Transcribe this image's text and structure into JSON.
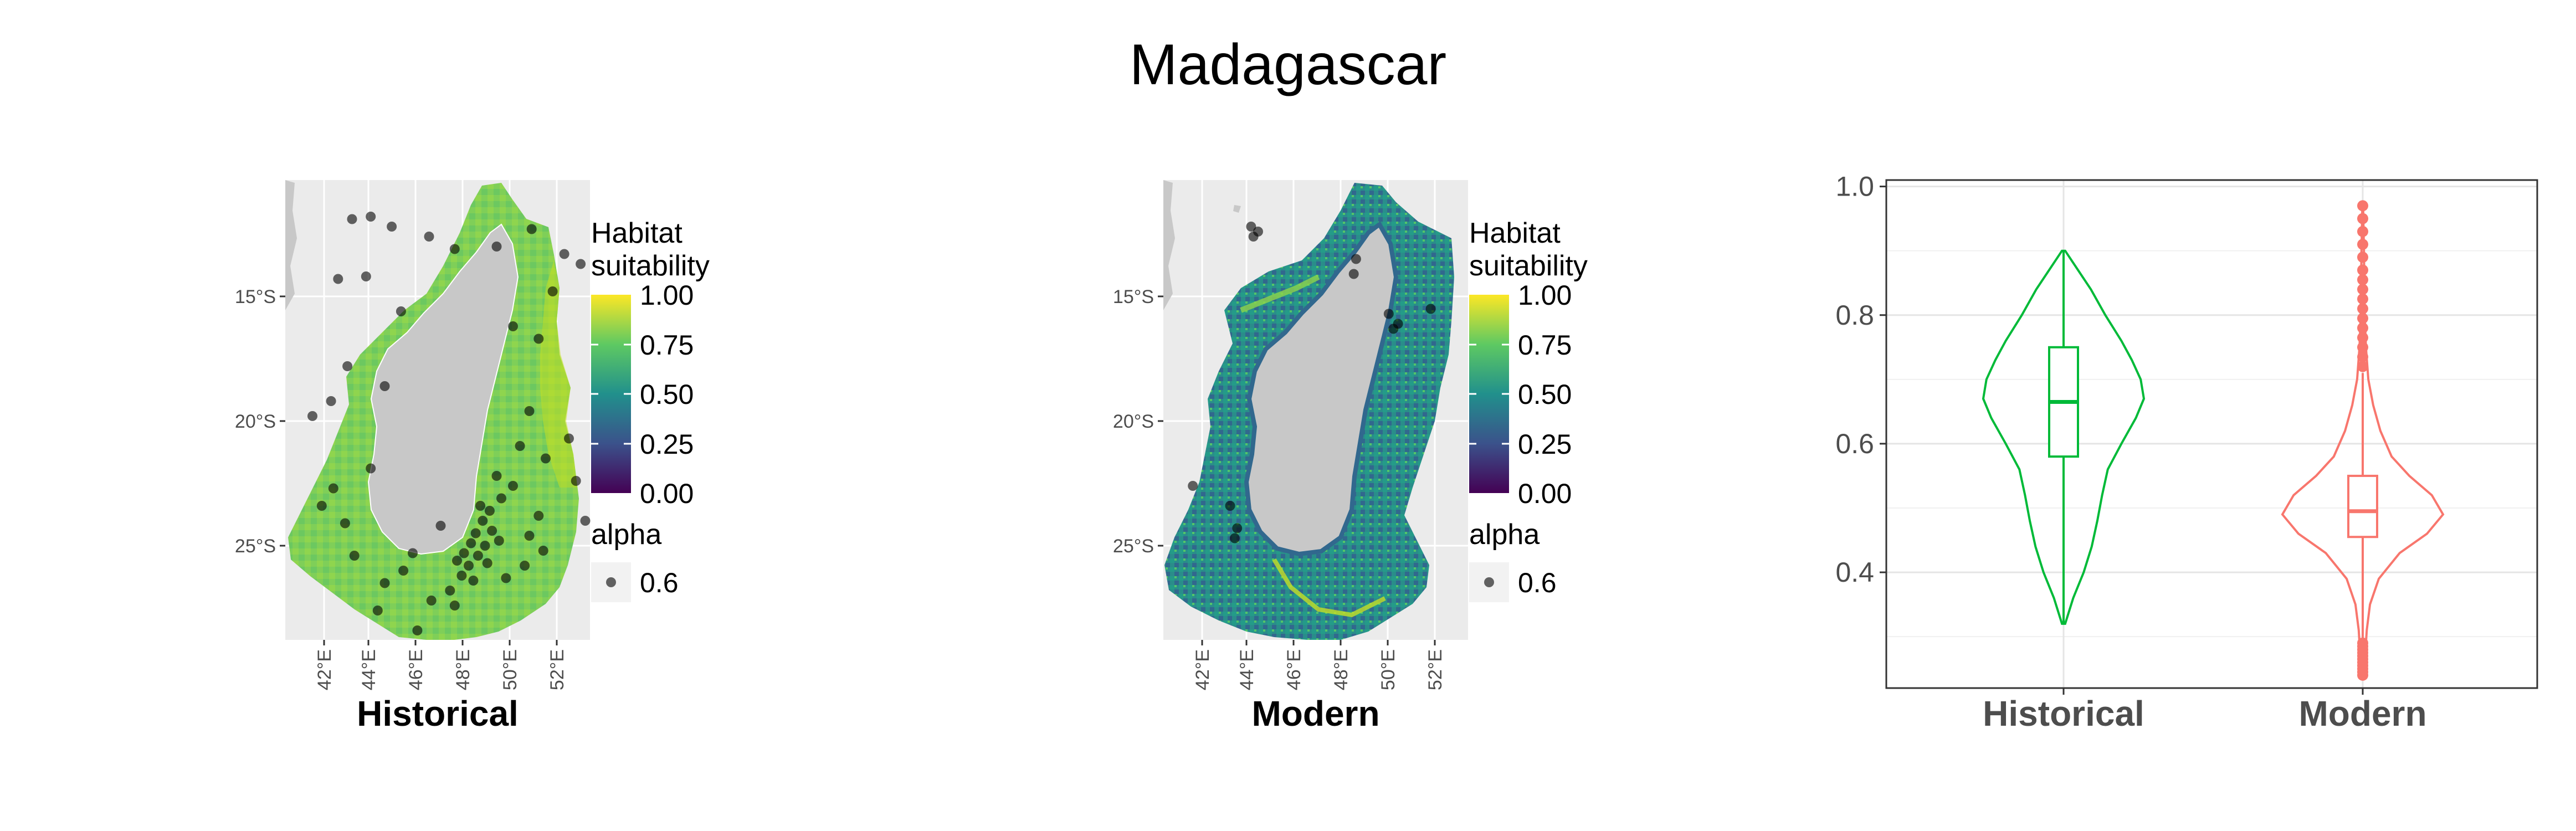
{
  "figure": {
    "title": "Madagascar"
  },
  "chart_data": [
    {
      "type": "heatmap",
      "panel": "historical-map",
      "xlabel": "Historical",
      "x_ticks": [
        "42°E",
        "44°E",
        "46°E",
        "48°E",
        "50°E",
        "52°E"
      ],
      "x_tick_values": [
        42,
        44,
        46,
        48,
        50,
        52
      ],
      "y_ticks": [
        "15°S",
        "20°S",
        "25°S"
      ],
      "y_tick_values": [
        -15,
        -20,
        -25
      ],
      "xlim": [
        41.2,
        53.6
      ],
      "ylim": [
        -29.3,
        -11.7
      ],
      "legend_title_line1": "Habitat",
      "legend_title_line2": "suitability",
      "legend_ticks": [
        "1.00",
        "0.75",
        "0.50",
        "0.25",
        "0.00"
      ],
      "legend_values": [
        1.0,
        0.75,
        0.5,
        0.25,
        0.0
      ],
      "alpha_title": "alpha",
      "alpha_value": "0.6",
      "occurrences": [
        [
          43.2,
          -11.9
        ],
        [
          44.0,
          -11.8
        ],
        [
          44.9,
          -12.2
        ],
        [
          46.5,
          -12.6
        ],
        [
          47.6,
          -13.1
        ],
        [
          49.4,
          -13.0
        ],
        [
          50.9,
          -12.3
        ],
        [
          52.3,
          -13.3
        ],
        [
          53.0,
          -13.7
        ],
        [
          43.8,
          -14.2
        ],
        [
          42.6,
          -14.3
        ],
        [
          51.8,
          -14.8
        ],
        [
          45.3,
          -15.6
        ],
        [
          50.1,
          -16.2
        ],
        [
          51.2,
          -16.7
        ],
        [
          43.0,
          -17.8
        ],
        [
          44.6,
          -18.6
        ],
        [
          42.3,
          -19.2
        ],
        [
          41.5,
          -19.8
        ],
        [
          50.8,
          -19.6
        ],
        [
          52.5,
          -20.7
        ],
        [
          51.5,
          -21.5
        ],
        [
          50.4,
          -21.0
        ],
        [
          44.0,
          -21.9
        ],
        [
          42.4,
          -22.7
        ],
        [
          50.1,
          -22.6
        ],
        [
          49.4,
          -22.2
        ],
        [
          52.8,
          -22.4
        ],
        [
          53.2,
          -24.0
        ],
        [
          51.2,
          -23.8
        ],
        [
          50.8,
          -24.6
        ],
        [
          49.6,
          -23.1
        ],
        [
          49.1,
          -23.6
        ],
        [
          48.8,
          -24.0
        ],
        [
          48.5,
          -24.5
        ],
        [
          48.3,
          -24.9
        ],
        [
          48.0,
          -25.3
        ],
        [
          47.7,
          -25.6
        ],
        [
          48.9,
          -25.0
        ],
        [
          49.2,
          -24.4
        ],
        [
          48.6,
          -25.4
        ],
        [
          48.2,
          -25.8
        ],
        [
          47.9,
          -26.2
        ],
        [
          48.4,
          -26.4
        ],
        [
          49.0,
          -25.7
        ],
        [
          49.5,
          -24.8
        ],
        [
          48.7,
          -23.4
        ],
        [
          47.4,
          -26.8
        ],
        [
          46.6,
          -27.2
        ],
        [
          45.4,
          -26.0
        ],
        [
          44.6,
          -26.5
        ],
        [
          43.3,
          -25.4
        ],
        [
          42.9,
          -24.1
        ],
        [
          41.9,
          -23.4
        ],
        [
          44.3,
          -27.6
        ],
        [
          46.0,
          -28.4
        ],
        [
          47.6,
          -27.4
        ],
        [
          50.6,
          -25.8
        ],
        [
          51.4,
          -25.2
        ],
        [
          49.8,
          -26.3
        ],
        [
          45.8,
          -25.3
        ],
        [
          47.0,
          -24.2
        ]
      ]
    },
    {
      "type": "heatmap",
      "panel": "modern-map",
      "xlabel": "Modern",
      "x_ticks": [
        "42°E",
        "44°E",
        "46°E",
        "48°E",
        "50°E",
        "52°E"
      ],
      "x_tick_values": [
        42,
        44,
        46,
        48,
        50,
        52
      ],
      "y_ticks": [
        "15°S",
        "20°S",
        "25°S"
      ],
      "y_tick_values": [
        -15,
        -20,
        -25
      ],
      "xlim": [
        41.2,
        53.6
      ],
      "ylim": [
        -29.3,
        -11.7
      ],
      "legend_title_line1": "Habitat",
      "legend_title_line2": "suitability",
      "legend_ticks": [
        "1.00",
        "0.75",
        "0.50",
        "0.25",
        "0.00"
      ],
      "legend_values": [
        1.0,
        0.75,
        0.5,
        0.25,
        0.0
      ],
      "alpha_title": "alpha",
      "alpha_value": "0.6",
      "occurrences": [
        [
          44.1,
          -12.2
        ],
        [
          44.4,
          -12.4
        ],
        [
          44.2,
          -12.6
        ],
        [
          48.6,
          -13.5
        ],
        [
          48.5,
          -14.1
        ],
        [
          51.8,
          -15.5
        ],
        [
          50.0,
          -15.7
        ],
        [
          50.4,
          -16.1
        ],
        [
          50.2,
          -16.3
        ],
        [
          41.6,
          -22.6
        ],
        [
          43.2,
          -23.4
        ],
        [
          43.5,
          -24.3
        ],
        [
          43.4,
          -24.7
        ]
      ]
    },
    {
      "type": "violin",
      "panel": "violin-plot",
      "categories": [
        "Historical",
        "Modern"
      ],
      "colors": [
        "#00ba38",
        "#f8766d"
      ],
      "ylim": [
        0.22,
        1.01
      ],
      "y_ticks": [
        "0.4",
        "0.6",
        "0.8",
        "1.0"
      ],
      "y_tick_values": [
        0.4,
        0.6,
        0.8,
        1.0
      ],
      "grid": true,
      "series": [
        {
          "category": "Historical",
          "min": 0.32,
          "q1": 0.58,
          "median": 0.665,
          "q3": 0.75,
          "max": 0.9,
          "density": [
            [
              0.32,
              0.02
            ],
            [
              0.36,
              0.12
            ],
            [
              0.4,
              0.25
            ],
            [
              0.44,
              0.35
            ],
            [
              0.48,
              0.42
            ],
            [
              0.52,
              0.48
            ],
            [
              0.56,
              0.55
            ],
            [
              0.6,
              0.72
            ],
            [
              0.64,
              0.9
            ],
            [
              0.67,
              1.0
            ],
            [
              0.7,
              0.96
            ],
            [
              0.73,
              0.85
            ],
            [
              0.76,
              0.72
            ],
            [
              0.8,
              0.52
            ],
            [
              0.84,
              0.34
            ],
            [
              0.87,
              0.18
            ],
            [
              0.9,
              0.02
            ]
          ],
          "outliers": []
        },
        {
          "category": "Modern",
          "min": 0.26,
          "q1": 0.455,
          "median": 0.495,
          "q3": 0.55,
          "max": 0.71,
          "density": [
            [
              0.24,
              0.01
            ],
            [
              0.27,
              0.03
            ],
            [
              0.31,
              0.05
            ],
            [
              0.35,
              0.09
            ],
            [
              0.39,
              0.2
            ],
            [
              0.43,
              0.46
            ],
            [
              0.46,
              0.8
            ],
            [
              0.49,
              1.0
            ],
            [
              0.52,
              0.86
            ],
            [
              0.55,
              0.58
            ],
            [
              0.58,
              0.36
            ],
            [
              0.62,
              0.22
            ],
            [
              0.66,
              0.13
            ],
            [
              0.7,
              0.07
            ],
            [
              0.75,
              0.04
            ],
            [
              0.8,
              0.025
            ],
            [
              0.85,
              0.02
            ],
            [
              0.9,
              0.015
            ],
            [
              0.97,
              0.005
            ]
          ],
          "outliers": [
            0.24,
            0.245,
            0.25,
            0.255,
            0.26,
            0.265,
            0.27,
            0.275,
            0.28,
            0.285,
            0.29,
            0.72,
            0.735,
            0.75,
            0.765,
            0.78,
            0.795,
            0.81,
            0.825,
            0.84,
            0.855,
            0.87,
            0.89,
            0.91,
            0.93,
            0.95,
            0.97
          ]
        }
      ]
    }
  ]
}
